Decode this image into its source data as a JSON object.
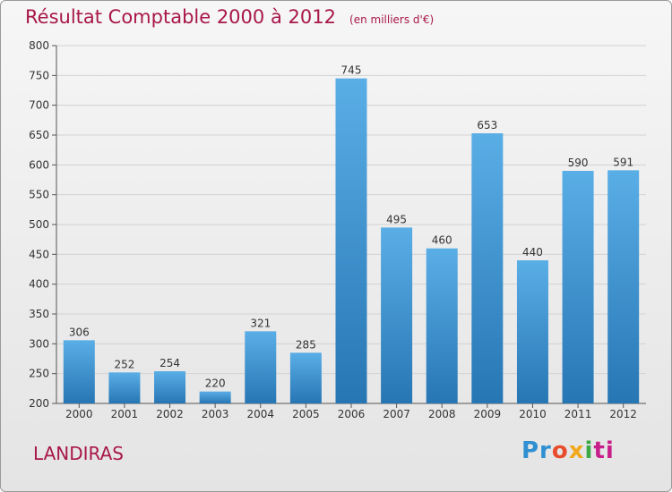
{
  "header": {
    "title": "Résultat Comptable 2000 à 2012",
    "subtitle": "(en milliers d'€)"
  },
  "footer": {
    "commune": "LANDIRAS",
    "logo": [
      "Pr",
      "o",
      "x",
      "i",
      "ti"
    ]
  },
  "colors": {
    "title": "#a8174a",
    "bar_top": "#5aaee6",
    "bar_bottom": "#2676b4"
  },
  "chart_data": {
    "type": "bar",
    "categories": [
      "2000",
      "2001",
      "2002",
      "2003",
      "2004",
      "2005",
      "2006",
      "2007",
      "2008",
      "2009",
      "2010",
      "2011",
      "2012"
    ],
    "values": [
      306,
      252,
      254,
      220,
      321,
      285,
      745,
      495,
      460,
      653,
      440,
      590,
      591
    ],
    "ylim": [
      200,
      800
    ],
    "yticks": [
      200,
      250,
      300,
      350,
      400,
      450,
      500,
      550,
      600,
      650,
      700,
      750,
      800
    ],
    "grid": true,
    "data_labels": true
  }
}
